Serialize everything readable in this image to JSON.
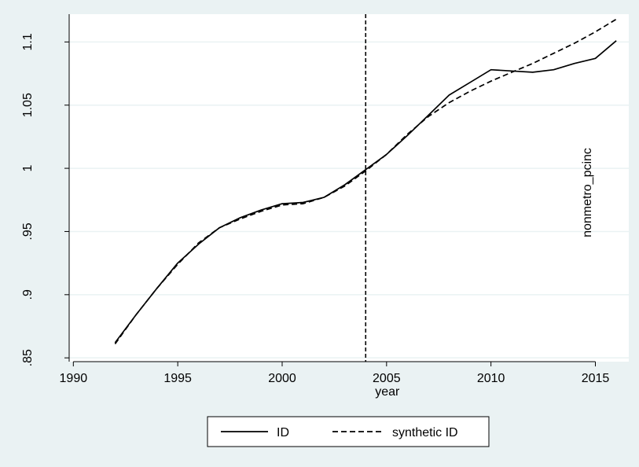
{
  "chart_data": {
    "type": "line",
    "xlabel": "year",
    "ylabel": "",
    "xlim": [
      1989.8,
      2016.6
    ],
    "ylim": [
      0.847,
      1.122
    ],
    "xticks": [
      1990,
      1995,
      2000,
      2005,
      2010,
      2015
    ],
    "xtick_labels": [
      "1990",
      "1995",
      "2000",
      "2005",
      "2010",
      "2015"
    ],
    "yticks": [
      0.85,
      0.9,
      0.95,
      1.0,
      1.05,
      1.1
    ],
    "ytick_labels": [
      ".85",
      ".9",
      ".95",
      "1",
      "1.05",
      "1.1"
    ],
    "grid": "horizontal",
    "vline_x": 2004,
    "annotation": "nonmetro_pcinc",
    "legend_position": "bottom",
    "series": [
      {
        "name": "ID",
        "style": "solid",
        "color": "#000000",
        "x": [
          1992,
          1993,
          1994,
          1995,
          1996,
          1997,
          1998,
          1999,
          2000,
          2001,
          2002,
          2003,
          2004,
          2005,
          2006,
          2007,
          2008,
          2009,
          2010,
          2011,
          2012,
          2013,
          2014,
          2015,
          2016
        ],
        "y": [
          0.862,
          0.884,
          0.905,
          0.925,
          0.94,
          0.953,
          0.961,
          0.967,
          0.972,
          0.973,
          0.977,
          0.987,
          0.999,
          1.011,
          1.026,
          1.042,
          1.058,
          1.068,
          1.078,
          1.077,
          1.076,
          1.078,
          1.083,
          1.087,
          1.101
        ]
      },
      {
        "name": "synthetic ID",
        "style": "dashed",
        "color": "#000000",
        "x": [
          1992,
          1993,
          1994,
          1995,
          1996,
          1997,
          1998,
          1999,
          2000,
          2001,
          2002,
          2003,
          2004,
          2005,
          2006,
          2007,
          2008,
          2009,
          2010,
          2011,
          2012,
          2013,
          2014,
          2015,
          2016
        ],
        "y": [
          0.861,
          0.884,
          0.905,
          0.924,
          0.941,
          0.953,
          0.96,
          0.966,
          0.971,
          0.972,
          0.977,
          0.986,
          0.998,
          1.011,
          1.027,
          1.041,
          1.052,
          1.061,
          1.069,
          1.076,
          1.083,
          1.091,
          1.099,
          1.108,
          1.118
        ]
      }
    ]
  }
}
